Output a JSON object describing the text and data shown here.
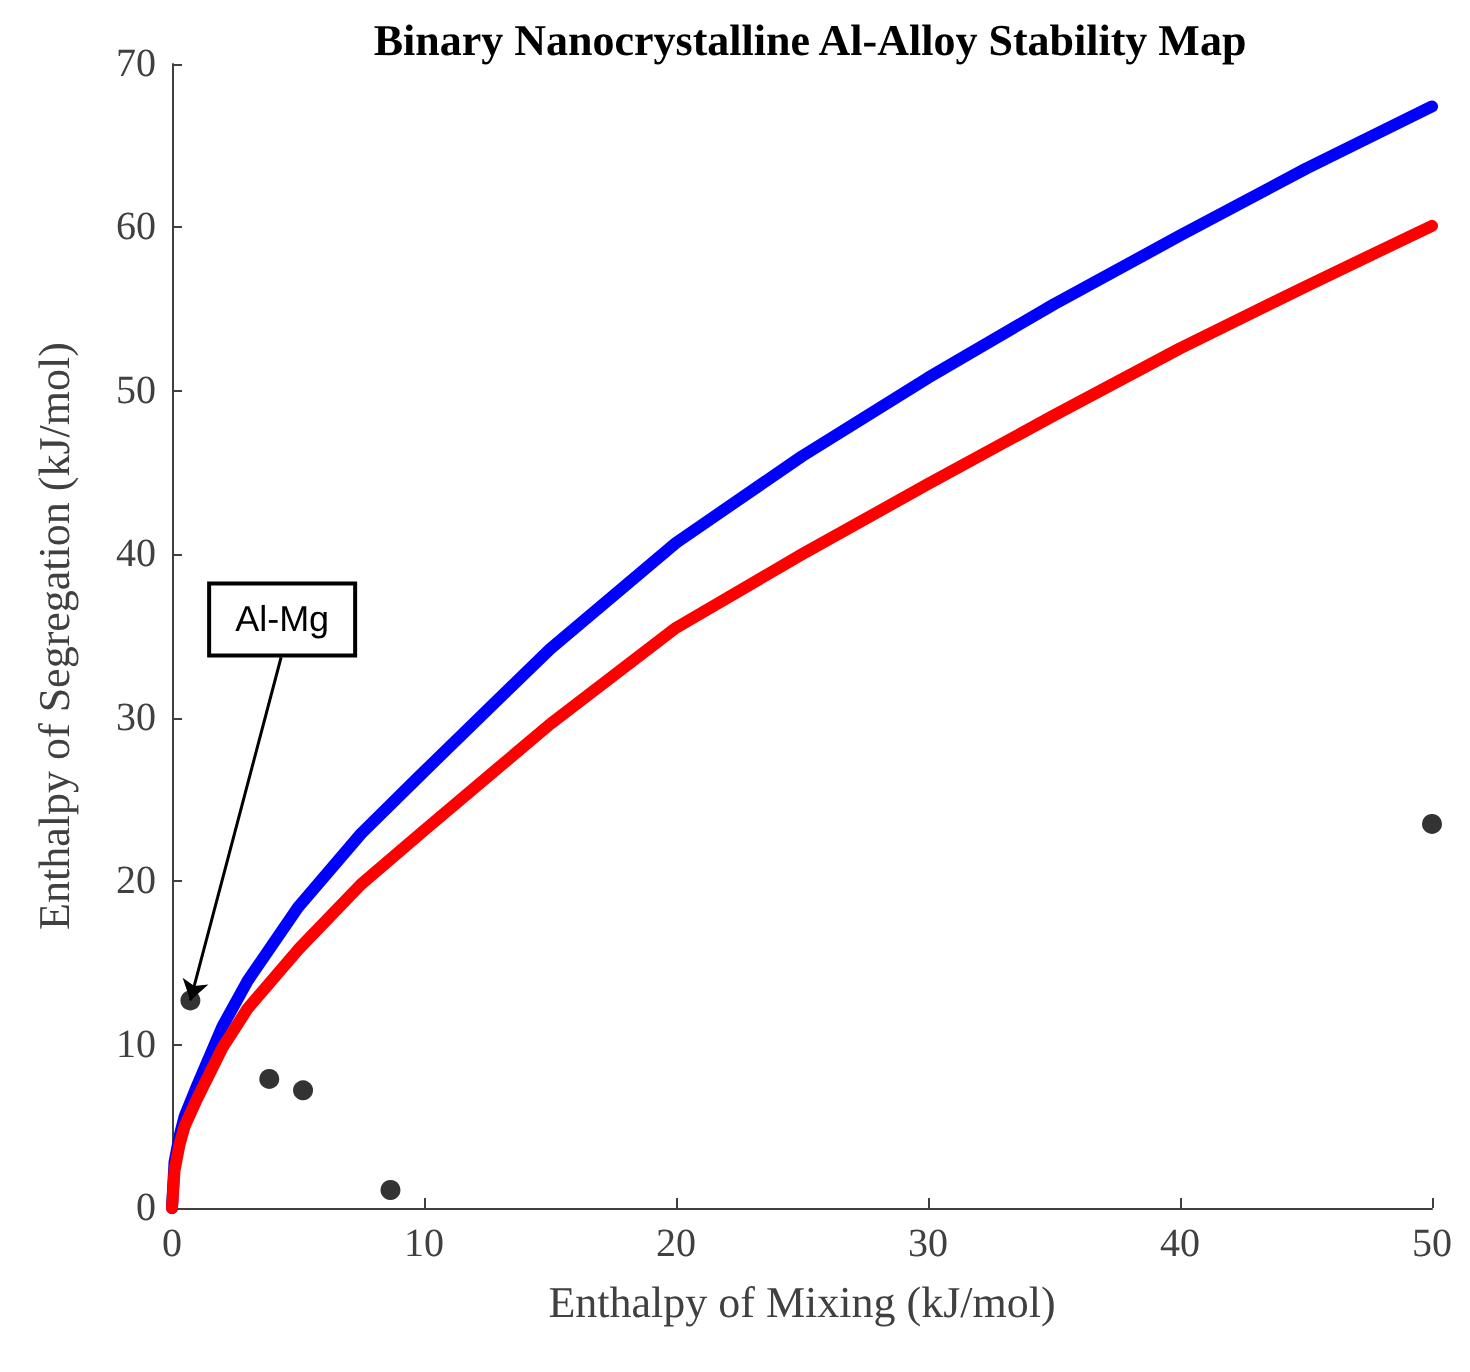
{
  "chart_data": {
    "type": "line",
    "title": "Binary Nanocrystalline Al-Alloy Stability Map",
    "xlabel": "Enthalpy of Mixing (kJ/mol)",
    "ylabel": "Enthalpy of Segregation (kJ/mol)",
    "xlim": [
      0,
      50
    ],
    "ylim": [
      0,
      70
    ],
    "xticks": [
      0,
      10,
      20,
      30,
      40,
      50
    ],
    "yticks": [
      0,
      10,
      20,
      30,
      40,
      50,
      60,
      70
    ],
    "grid": false,
    "series": [
      {
        "color": "#0000ff",
        "x": [
          0,
          0.1,
          0.3,
          0.5,
          1,
          2,
          3,
          5,
          7.5,
          10,
          15,
          20,
          25,
          30,
          35,
          40,
          45,
          50
        ],
        "values": [
          0,
          2.8,
          4.4,
          5.6,
          7.5,
          11.1,
          13.9,
          18.4,
          22.9,
          26.7,
          34.2,
          40.7,
          46.0,
          50.8,
          55.3,
          59.5,
          63.6,
          67.4
        ],
        "marker": "none"
      },
      {
        "color": "#ff0000",
        "x": [
          0,
          0.1,
          0.3,
          0.5,
          1,
          2,
          3,
          5,
          7.5,
          10,
          15,
          20,
          25,
          30,
          35,
          40,
          45,
          50
        ],
        "values": [
          0,
          2.3,
          3.9,
          5.0,
          6.7,
          9.8,
          12.2,
          15.8,
          19.8,
          23.1,
          29.6,
          35.5,
          40.0,
          44.3,
          48.5,
          52.6,
          56.4,
          60.1
        ],
        "marker": "none"
      },
      {
        "type": "scatter",
        "color": "#000000",
        "x": [
          0.73,
          3.86,
          5.2,
          8.67,
          50
        ],
        "values": [
          12.7,
          7.9,
          7.2,
          1.1,
          23.5
        ],
        "marker": "circle"
      }
    ],
    "annotations": [
      {
        "text": "Al-Mg",
        "x": 0.73,
        "y": 12.7
      }
    ]
  }
}
